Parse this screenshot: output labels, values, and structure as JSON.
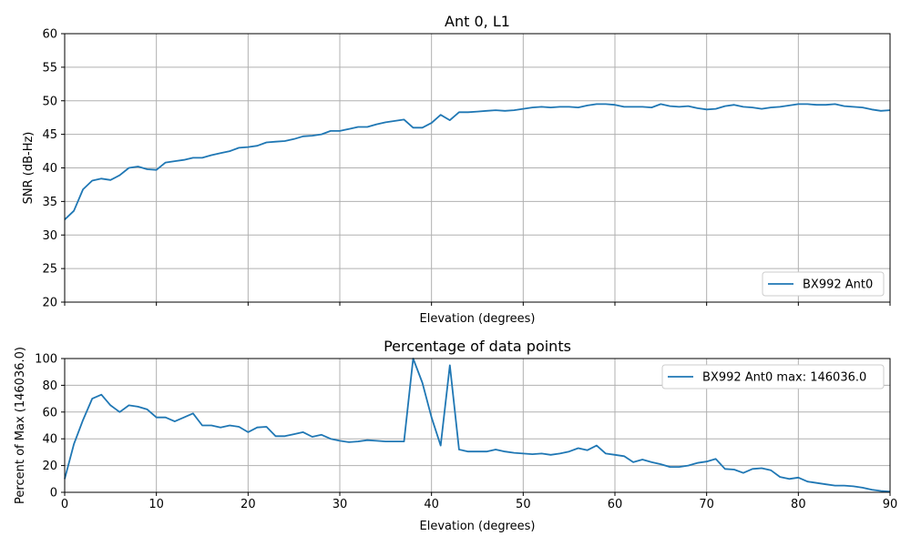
{
  "chart_data": [
    {
      "type": "line",
      "title": "Ant 0, L1",
      "xlabel": "Elevation (degrees)",
      "ylabel": "SNR (dB-Hz)",
      "xlim": [
        0,
        90
      ],
      "ylim": [
        20,
        60
      ],
      "xticks": [
        0,
        10,
        20,
        30,
        40,
        50,
        60,
        70,
        80,
        90
      ],
      "xtick_labels_shown": false,
      "yticks": [
        20,
        25,
        30,
        35,
        40,
        45,
        50,
        55,
        60
      ],
      "grid": true,
      "legend_position": "lower-right",
      "series": [
        {
          "name": "BX992 Ant0",
          "color": "#1f77b4",
          "x": [
            0,
            1,
            2,
            3,
            4,
            5,
            6,
            7,
            8,
            9,
            10,
            11,
            12,
            13,
            14,
            15,
            16,
            17,
            18,
            19,
            20,
            21,
            22,
            23,
            24,
            25,
            26,
            27,
            28,
            29,
            30,
            31,
            32,
            33,
            34,
            35,
            36,
            37,
            38,
            39,
            40,
            41,
            42,
            43,
            44,
            45,
            46,
            47,
            48,
            49,
            50,
            51,
            52,
            53,
            54,
            55,
            56,
            57,
            58,
            59,
            60,
            61,
            62,
            63,
            64,
            65,
            66,
            67,
            68,
            69,
            70,
            71,
            72,
            73,
            74,
            75,
            76,
            77,
            78,
            79,
            80,
            81,
            82,
            83,
            84,
            85,
            86,
            87,
            88,
            89,
            90
          ],
          "values": [
            32.3,
            33.6,
            36.8,
            38.1,
            38.4,
            38.2,
            38.9,
            40.0,
            40.2,
            39.8,
            39.7,
            40.8,
            41.0,
            41.2,
            41.5,
            41.5,
            41.9,
            42.2,
            42.5,
            43.0,
            43.1,
            43.3,
            43.8,
            43.9,
            44.0,
            44.3,
            44.7,
            44.8,
            45.0,
            45.5,
            45.5,
            45.8,
            46.1,
            46.1,
            46.5,
            46.8,
            47.0,
            47.2,
            46.0,
            46.0,
            46.7,
            47.9,
            47.1,
            48.3,
            48.3,
            48.4,
            48.5,
            48.6,
            48.5,
            48.6,
            48.8,
            49.0,
            49.1,
            49.0,
            49.1,
            49.1,
            49.0,
            49.3,
            49.5,
            49.5,
            49.4,
            49.1,
            49.1,
            49.1,
            49.0,
            49.5,
            49.2,
            49.1,
            49.2,
            48.9,
            48.7,
            48.8,
            49.2,
            49.4,
            49.1,
            49.0,
            48.8,
            49.0,
            49.1,
            49.3,
            49.5,
            49.5,
            49.4,
            49.4,
            49.5,
            49.2,
            49.1,
            49.0,
            48.7,
            48.5,
            48.6
          ]
        }
      ]
    },
    {
      "type": "line",
      "title": "Percentage of data points",
      "xlabel": "Elevation (degrees)",
      "ylabel": "Percent of Max (146036.0)",
      "xlim": [
        0,
        90
      ],
      "ylim": [
        0,
        100
      ],
      "xticks": [
        0,
        10,
        20,
        30,
        40,
        50,
        60,
        70,
        80,
        90
      ],
      "yticks": [
        0,
        20,
        40,
        60,
        80,
        100
      ],
      "grid": true,
      "legend_position": "upper-right",
      "series": [
        {
          "name": "BX992 Ant0 max: 146036.0",
          "color": "#1f77b4",
          "x": [
            0,
            1,
            2,
            3,
            4,
            5,
            6,
            7,
            8,
            9,
            10,
            11,
            12,
            13,
            14,
            15,
            16,
            17,
            18,
            19,
            20,
            21,
            22,
            23,
            24,
            25,
            26,
            27,
            28,
            29,
            30,
            31,
            32,
            33,
            34,
            35,
            36,
            37,
            38,
            39,
            40,
            41,
            42,
            43,
            44,
            45,
            46,
            47,
            48,
            49,
            50,
            51,
            52,
            53,
            54,
            55,
            56,
            57,
            58,
            59,
            60,
            61,
            62,
            63,
            64,
            65,
            66,
            67,
            68,
            69,
            70,
            71,
            72,
            73,
            74,
            75,
            76,
            77,
            78,
            79,
            80,
            81,
            82,
            83,
            84,
            85,
            86,
            87,
            88,
            89,
            90
          ],
          "values": [
            10,
            36,
            54,
            70,
            73,
            65,
            60,
            65,
            64,
            62,
            56,
            56,
            53,
            56,
            59,
            50,
            50,
            48.5,
            50,
            49,
            45,
            48.5,
            49,
            42,
            42,
            43.5,
            45,
            41.5,
            43,
            40,
            38.5,
            37.5,
            38,
            39,
            38.5,
            38,
            38,
            38,
            100,
            82,
            56,
            35,
            95,
            32,
            30.5,
            30.5,
            30.5,
            32,
            30.5,
            29.5,
            29,
            28.5,
            29,
            28,
            29,
            30.5,
            33,
            31.5,
            35,
            29,
            28,
            27,
            22.5,
            24.5,
            22.5,
            21,
            19,
            19,
            20,
            22,
            23,
            25,
            17.5,
            17,
            14.5,
            17.5,
            18,
            16.5,
            11.5,
            10,
            11,
            8,
            7,
            6,
            5,
            5,
            4.5,
            3.5,
            2,
            1,
            0.5
          ]
        }
      ]
    }
  ]
}
